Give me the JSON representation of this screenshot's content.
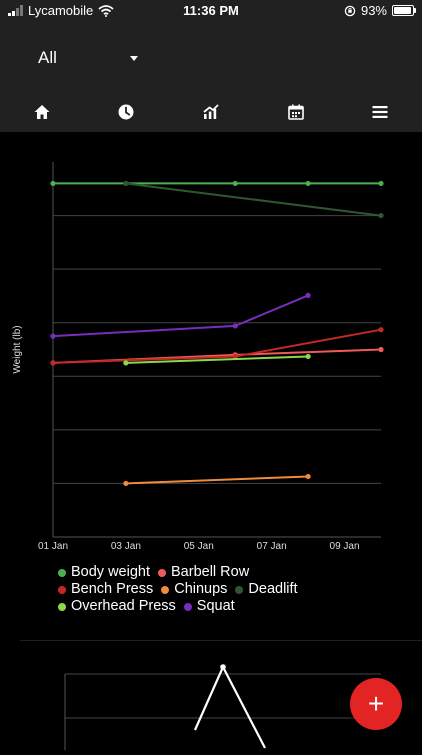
{
  "status_bar": {
    "carrier": "Lycamobile",
    "time": "11:36 PM",
    "battery": "93%",
    "battery_level": 0.93
  },
  "header": {
    "filter": {
      "value": "All"
    },
    "nav": [
      {
        "name": "home",
        "icon": "home-icon"
      },
      {
        "name": "history",
        "icon": "clock-icon"
      },
      {
        "name": "progress",
        "icon": "chart-icon"
      },
      {
        "name": "calendar",
        "icon": "calendar-icon"
      },
      {
        "name": "menu",
        "icon": "menu-icon"
      }
    ]
  },
  "chart_data": {
    "type": "line",
    "title": "",
    "xlabel": "",
    "ylabel": "Weight (lb)",
    "x_ticks": [
      "01 Jan",
      "03 Jan",
      "05 Jan",
      "07 Jan",
      "09 Jan"
    ],
    "x_range": [
      1,
      10
    ],
    "y_range": [
      0,
      7
    ],
    "y_ticks": [
      1,
      2,
      3,
      4,
      5,
      6
    ],
    "grid": "horizontal",
    "legend_placement": "bottom",
    "series": [
      {
        "name": "Body weight",
        "color": "#4caf50",
        "x": [
          1,
          3,
          6,
          8,
          10
        ],
        "y": [
          6.6,
          6.6,
          6.6,
          6.6,
          6.6
        ]
      },
      {
        "name": "Barbell Row",
        "color": "#f05a5a",
        "x": [
          1,
          6,
          10
        ],
        "y": [
          3.25,
          3.4,
          3.5
        ]
      },
      {
        "name": "Bench Press",
        "color": "#c62828",
        "x": [
          1,
          6,
          10
        ],
        "y": [
          3.25,
          3.37,
          3.87
        ]
      },
      {
        "name": "Chinups",
        "color": "#f08a3c",
        "x": [
          3,
          8
        ],
        "y": [
          1.0,
          1.13
        ]
      },
      {
        "name": "Deadlift",
        "color": "#2e5730",
        "x": [
          3,
          10
        ],
        "y": [
          6.6,
          6.0
        ]
      },
      {
        "name": "Overhead Press",
        "color": "#8bd94a",
        "x": [
          3,
          8
        ],
        "y": [
          3.25,
          3.37
        ]
      },
      {
        "name": "Squat",
        "color": "#7b2cbf",
        "x": [
          1,
          6,
          8
        ],
        "y": [
          3.75,
          3.94,
          4.51
        ]
      }
    ]
  },
  "second_chart": {
    "type": "line",
    "color": "#ffffff",
    "x": [
      1,
      2,
      3
    ],
    "y": [
      0.8,
      2.9,
      0.2
    ],
    "y_range": [
      0,
      3
    ]
  },
  "fab": {
    "label": "+"
  }
}
